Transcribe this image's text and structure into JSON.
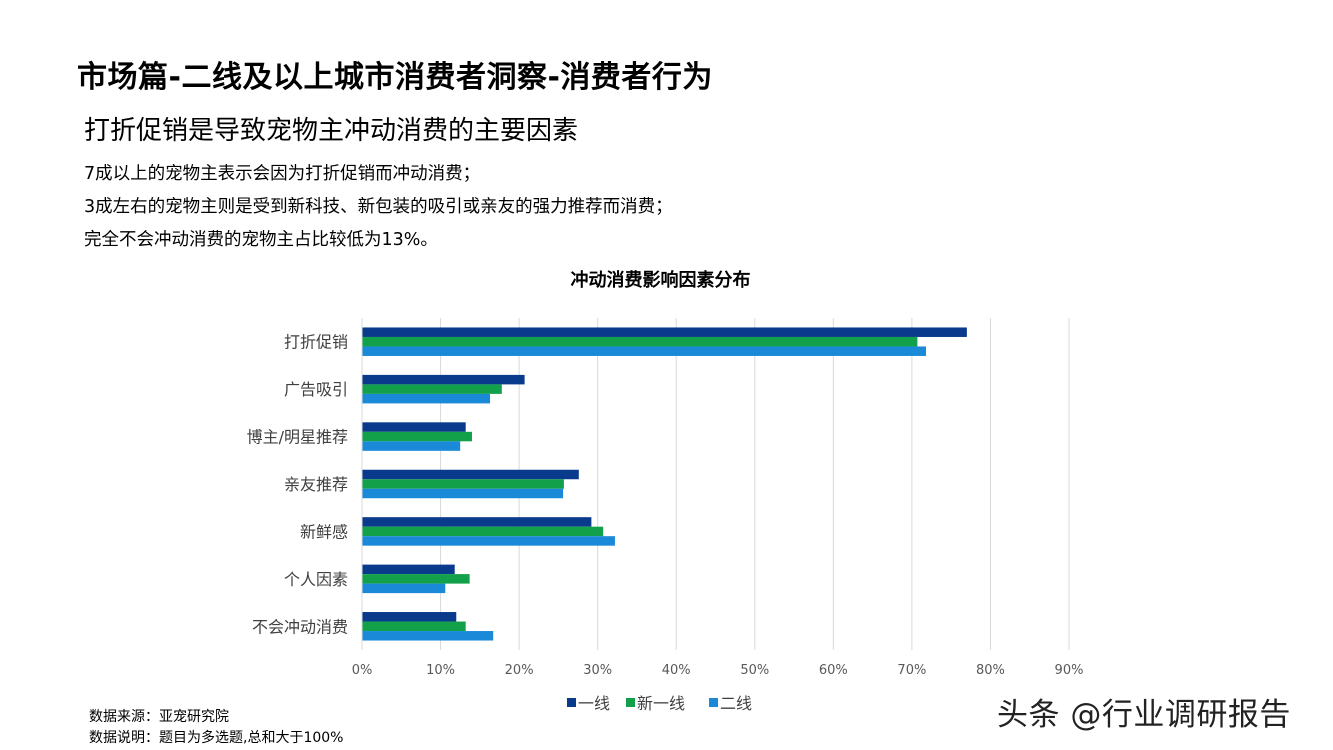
{
  "header": {
    "title": "市场篇-二线及以上城市消费者洞察-消费者行为",
    "subtitle": "打折促销是导致宠物主冲动消费的主要因素",
    "bullets": [
      "7成以上的宠物主表示会因为打折促销而冲动消费；",
      "3成左右的宠物主则是受到新科技、新包装的吸引或亲友的强力推荐而消费；",
      "完全不会冲动消费的宠物主占比较低为13%。"
    ]
  },
  "chart_data": {
    "type": "bar",
    "orientation": "horizontal",
    "title": "冲动消费影响因素分布",
    "categories": [
      "打折促销",
      "广告吸引",
      "博主/明星推荐",
      "亲友推荐",
      "新鲜感",
      "个人因素",
      "不会冲动消费"
    ],
    "series": [
      {
        "name": "一线",
        "color": "#0a3a8c",
        "values": [
          77.0,
          20.7,
          13.2,
          27.6,
          29.2,
          11.8,
          12.0
        ]
      },
      {
        "name": "新一线",
        "color": "#12a04a",
        "values": [
          70.7,
          17.8,
          14.0,
          25.7,
          30.7,
          13.7,
          13.2
        ]
      },
      {
        "name": "二线",
        "color": "#1a8ad8",
        "values": [
          71.8,
          16.3,
          12.5,
          25.6,
          32.2,
          10.6,
          16.7
        ]
      }
    ],
    "xlim": [
      0,
      90
    ],
    "xticks": [
      "0%",
      "10%",
      "20%",
      "30%",
      "40%",
      "50%",
      "60%",
      "70%",
      "80%",
      "90%"
    ],
    "grid": true,
    "legend": "bottom"
  },
  "notes": {
    "source": "数据来源：亚宠研究院",
    "remark": "数据说明：题目为多选题,总和大于100%"
  },
  "watermark": "头条 @行业调研报告"
}
